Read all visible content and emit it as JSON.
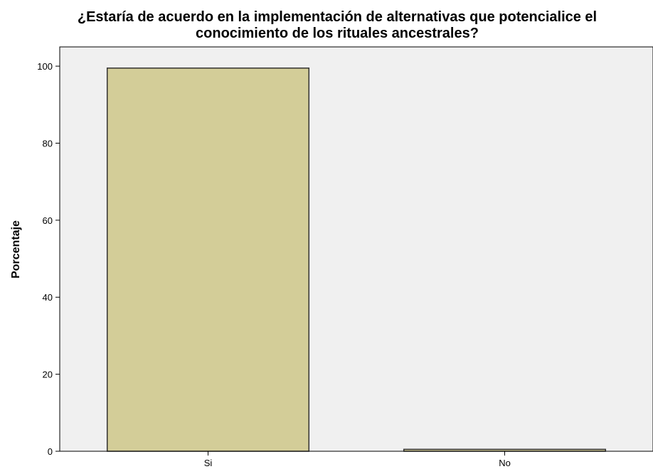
{
  "chart_data": {
    "type": "bar",
    "title": "¿Estaría de acuerdo en la implementación de alternativas que potencialice el conocimiento de los rituales ancestrales?",
    "title_lines": [
      "¿Estaría de acuerdo en la implementación de alternativas que potencialice el",
      "conocimiento de los rituales ancestrales?"
    ],
    "xlabel": "",
    "ylabel": "Porcentaje",
    "categories": [
      "Si",
      "No"
    ],
    "values": [
      99.5,
      0.5
    ],
    "ylim": [
      0,
      105
    ],
    "yticks": [
      0,
      20,
      40,
      60,
      80,
      100
    ],
    "grid": false,
    "colors": {
      "bar_fill": "#d3cd98",
      "bar_stroke": "#333333",
      "plot_background": "#f0f0f0",
      "axis": "#000000"
    }
  }
}
